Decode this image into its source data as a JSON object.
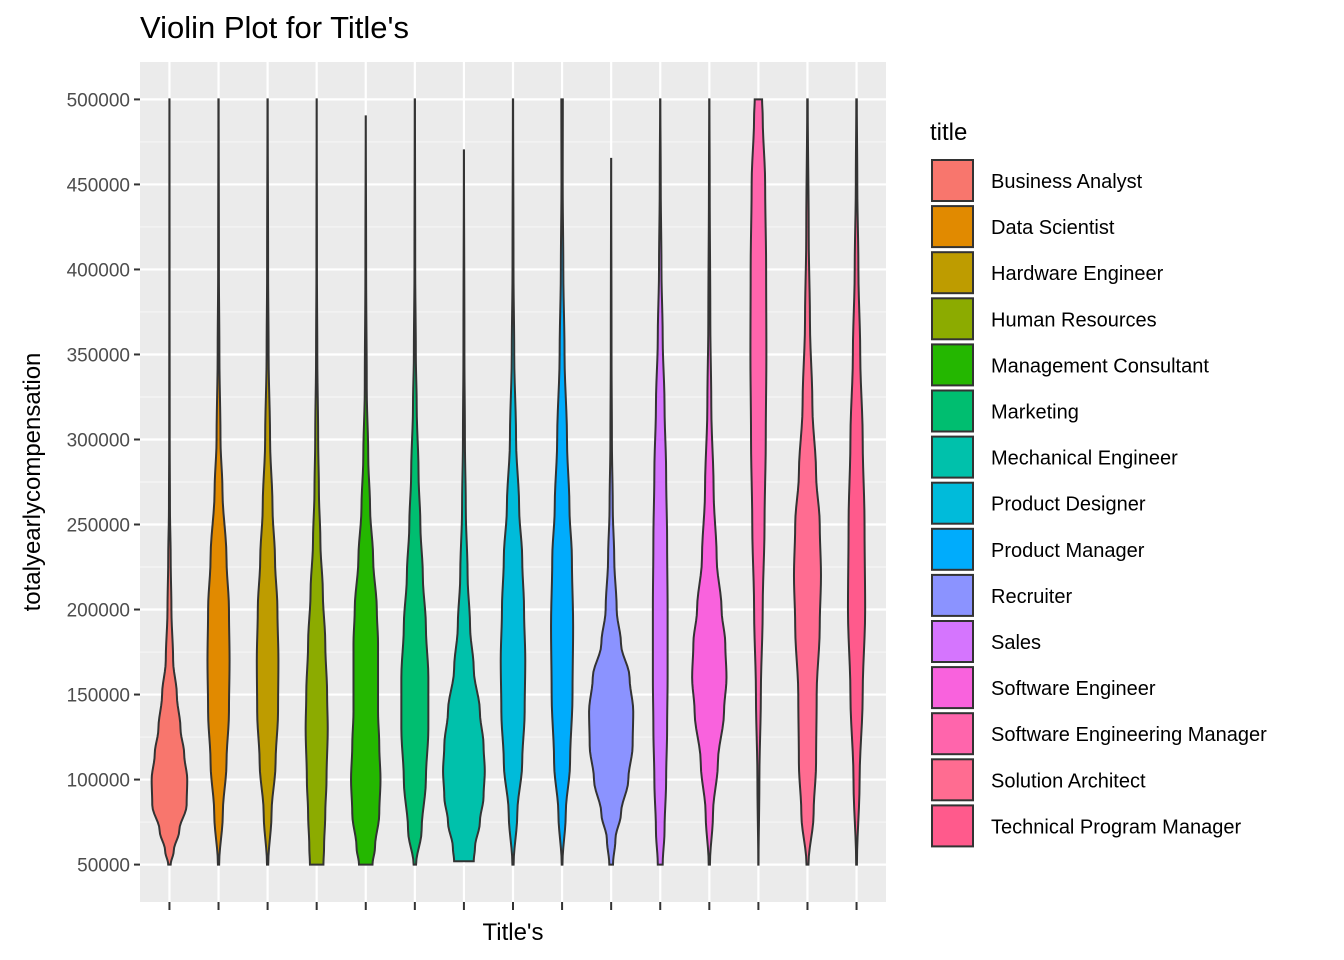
{
  "chart_data": {
    "type": "violin",
    "title": "Violin Plot for Title's",
    "xlabel": "Title's",
    "ylabel": "totalyearlycompensation",
    "ylim": [
      28000,
      522000
    ],
    "yticks": [
      50000,
      100000,
      150000,
      200000,
      250000,
      300000,
      350000,
      400000,
      450000,
      500000
    ],
    "ytick_labels": [
      "50000",
      "100000",
      "150000",
      "200000",
      "250000",
      "300000",
      "350000",
      "400000",
      "450000",
      "500000"
    ],
    "grid": true,
    "legend": {
      "title": "title",
      "position": "right"
    },
    "categories": [
      "Business Analyst",
      "Data Scientist",
      "Hardware Engineer",
      "Human Resources",
      "Management Consultant",
      "Marketing",
      "Mechanical Engineer",
      "Product Designer",
      "Product Manager",
      "Recruiter",
      "Sales",
      "Software Engineer",
      "Software Engineering Manager",
      "Solution Architect",
      "Technical Program Manager"
    ],
    "colors": [
      "#F8766D",
      "#E18A00",
      "#BE9C00",
      "#8CAB00",
      "#24B700",
      "#00BE70",
      "#00C1AB",
      "#00BBDA",
      "#00ACFC",
      "#8B93FF",
      "#D575FE",
      "#F962DD",
      "#FF65AC",
      "#FF6C91",
      "#FF5A8C"
    ],
    "series": [
      {
        "name": "Business Analyst",
        "min": 50000,
        "max": 500000,
        "color": "#F8766D",
        "density": [
          [
            50000,
            1.0
          ],
          [
            58000,
            3.5
          ],
          [
            70000,
            8.0
          ],
          [
            85000,
            14.0
          ],
          [
            100000,
            14.5
          ],
          [
            115000,
            12.0
          ],
          [
            130000,
            9.0
          ],
          [
            150000,
            6.0
          ],
          [
            170000,
            3.0
          ],
          [
            200000,
            1.6
          ],
          [
            230000,
            1.0
          ],
          [
            260000,
            0.4
          ],
          [
            300000,
            0.2
          ],
          [
            400000,
            0.1
          ],
          [
            500000,
            0.05
          ]
        ]
      },
      {
        "name": "Data Scientist",
        "min": 50000,
        "max": 500000,
        "color": "#E18A00",
        "density": [
          [
            50000,
            0.5
          ],
          [
            80000,
            3.5
          ],
          [
            110000,
            6.5
          ],
          [
            140000,
            8.5
          ],
          [
            170000,
            9.0
          ],
          [
            200000,
            8.5
          ],
          [
            230000,
            6.5
          ],
          [
            270000,
            3.2
          ],
          [
            300000,
            1.6
          ],
          [
            350000,
            0.7
          ],
          [
            400000,
            0.3
          ],
          [
            500000,
            0.1
          ]
        ]
      },
      {
        "name": "Hardware Engineer",
        "min": 50000,
        "max": 500000,
        "color": "#BE9C00",
        "density": [
          [
            50000,
            0.5
          ],
          [
            80000,
            3.2
          ],
          [
            110000,
            6.5
          ],
          [
            140000,
            8.5
          ],
          [
            170000,
            8.8
          ],
          [
            200000,
            8.0
          ],
          [
            230000,
            6.0
          ],
          [
            260000,
            4.0
          ],
          [
            300000,
            2.0
          ],
          [
            350000,
            0.8
          ],
          [
            400000,
            0.4
          ],
          [
            500000,
            0.1
          ]
        ]
      },
      {
        "name": "Human Resources",
        "min": 50000,
        "max": 500000,
        "color": "#8CAB00",
        "density": [
          [
            50000,
            5.5
          ],
          [
            60000,
            6.0
          ],
          [
            80000,
            7.0
          ],
          [
            100000,
            8.0
          ],
          [
            130000,
            9.0
          ],
          [
            150000,
            8.5
          ],
          [
            180000,
            7.0
          ],
          [
            210000,
            5.0
          ],
          [
            240000,
            3.0
          ],
          [
            270000,
            1.8
          ],
          [
            300000,
            1.2
          ],
          [
            350000,
            0.5
          ],
          [
            400000,
            0.2
          ],
          [
            500000,
            0.05
          ]
        ]
      },
      {
        "name": "Management Consultant",
        "min": 50000,
        "max": 490000,
        "color": "#24B700",
        "density": [
          [
            50000,
            5.5
          ],
          [
            60000,
            7.5
          ],
          [
            80000,
            11.0
          ],
          [
            100000,
            12.0
          ],
          [
            120000,
            11.0
          ],
          [
            140000,
            10.0
          ],
          [
            160000,
            10.0
          ],
          [
            180000,
            10.0
          ],
          [
            200000,
            9.0
          ],
          [
            230000,
            6.0
          ],
          [
            260000,
            3.5
          ],
          [
            290000,
            2.0
          ],
          [
            330000,
            0.8
          ],
          [
            400000,
            0.3
          ],
          [
            490000,
            0.05
          ]
        ]
      },
      {
        "name": "Marketing",
        "min": 50000,
        "max": 500000,
        "color": "#00BE70",
        "density": [
          [
            50000,
            1.0
          ],
          [
            70000,
            5.5
          ],
          [
            100000,
            9.0
          ],
          [
            130000,
            11.0
          ],
          [
            160000,
            11.0
          ],
          [
            190000,
            9.0
          ],
          [
            220000,
            6.5
          ],
          [
            250000,
            4.5
          ],
          [
            280000,
            3.0
          ],
          [
            320000,
            1.5
          ],
          [
            350000,
            0.8
          ],
          [
            400000,
            0.3
          ],
          [
            500000,
            0.1
          ]
        ]
      },
      {
        "name": "Mechanical Engineer",
        "min": 52000,
        "max": 470000,
        "color": "#00C1AB",
        "density": [
          [
            52000,
            8.0
          ],
          [
            60000,
            9.0
          ],
          [
            75000,
            13.0
          ],
          [
            90000,
            16.0
          ],
          [
            105000,
            17.0
          ],
          [
            120000,
            16.0
          ],
          [
            140000,
            13.0
          ],
          [
            165000,
            8.0
          ],
          [
            190000,
            5.0
          ],
          [
            220000,
            3.0
          ],
          [
            260000,
            1.5
          ],
          [
            300000,
            0.8
          ],
          [
            350000,
            0.4
          ],
          [
            470000,
            0.05
          ]
        ]
      },
      {
        "name": "Product Designer",
        "min": 50000,
        "max": 500000,
        "color": "#00BBDA",
        "density": [
          [
            50000,
            0.5
          ],
          [
            80000,
            3.5
          ],
          [
            110000,
            7.5
          ],
          [
            140000,
            9.5
          ],
          [
            170000,
            10.0
          ],
          [
            200000,
            9.0
          ],
          [
            230000,
            7.5
          ],
          [
            260000,
            5.0
          ],
          [
            300000,
            2.5
          ],
          [
            350000,
            1.0
          ],
          [
            400000,
            0.4
          ],
          [
            500000,
            0.1
          ]
        ]
      },
      {
        "name": "Product Manager",
        "min": 50000,
        "max": 500000,
        "color": "#00ACFC",
        "density": [
          [
            50000,
            0.3
          ],
          [
            80000,
            3.0
          ],
          [
            110000,
            6.5
          ],
          [
            150000,
            8.5
          ],
          [
            190000,
            9.0
          ],
          [
            230000,
            8.0
          ],
          [
            260000,
            6.0
          ],
          [
            300000,
            4.0
          ],
          [
            350000,
            2.0
          ],
          [
            400000,
            1.0
          ],
          [
            450000,
            0.5
          ],
          [
            500000,
            0.6
          ]
        ]
      },
      {
        "name": "Recruiter",
        "min": 50000,
        "max": 465000,
        "color": "#8B93FF",
        "density": [
          [
            50000,
            1.5
          ],
          [
            65000,
            3.5
          ],
          [
            80000,
            8.0
          ],
          [
            100000,
            14.0
          ],
          [
            120000,
            17.5
          ],
          [
            140000,
            18.0
          ],
          [
            160000,
            15.0
          ],
          [
            180000,
            8.0
          ],
          [
            200000,
            4.5
          ],
          [
            230000,
            2.5
          ],
          [
            260000,
            1.3
          ],
          [
            300000,
            0.6
          ],
          [
            350000,
            0.3
          ],
          [
            465000,
            0.05
          ]
        ]
      },
      {
        "name": "Sales",
        "min": 50000,
        "max": 500000,
        "color": "#D575FE",
        "density": [
          [
            50000,
            2.0
          ],
          [
            70000,
            3.5
          ],
          [
            100000,
            4.8
          ],
          [
            130000,
            5.6
          ],
          [
            160000,
            6.0
          ],
          [
            200000,
            6.0
          ],
          [
            240000,
            5.6
          ],
          [
            280000,
            4.8
          ],
          [
            320000,
            3.5
          ],
          [
            360000,
            2.0
          ],
          [
            400000,
            1.0
          ],
          [
            450000,
            0.4
          ],
          [
            500000,
            0.1
          ]
        ]
      },
      {
        "name": "Software Engineer",
        "min": 50000,
        "max": 500000,
        "color": "#F962DD",
        "density": [
          [
            50000,
            0.5
          ],
          [
            80000,
            3.0
          ],
          [
            110000,
            7.0
          ],
          [
            140000,
            12.0
          ],
          [
            160000,
            14.0
          ],
          [
            180000,
            13.0
          ],
          [
            200000,
            10.0
          ],
          [
            230000,
            6.0
          ],
          [
            270000,
            3.5
          ],
          [
            320000,
            1.6
          ],
          [
            370000,
            0.8
          ],
          [
            450000,
            0.3
          ],
          [
            500000,
            0.1
          ]
        ]
      },
      {
        "name": "Software Engineering Manager",
        "min": 50000,
        "max": 500000,
        "color": "#FF65AC",
        "density": [
          [
            50000,
            0.1
          ],
          [
            100000,
            0.8
          ],
          [
            150000,
            2.0
          ],
          [
            200000,
            3.5
          ],
          [
            250000,
            5.0
          ],
          [
            300000,
            6.0
          ],
          [
            350000,
            6.5
          ],
          [
            400000,
            6.3
          ],
          [
            450000,
            5.5
          ],
          [
            490000,
            3.5
          ],
          [
            500000,
            3.0
          ]
        ]
      },
      {
        "name": "Solution Architect",
        "min": 50000,
        "max": 500000,
        "color": "#FF6C91",
        "density": [
          [
            50000,
            0.8
          ],
          [
            80000,
            5.0
          ],
          [
            110000,
            7.0
          ],
          [
            150000,
            7.5
          ],
          [
            190000,
            10.0
          ],
          [
            220000,
            11.0
          ],
          [
            250000,
            10.0
          ],
          [
            280000,
            7.0
          ],
          [
            320000,
            4.0
          ],
          [
            370000,
            2.0
          ],
          [
            420000,
            1.0
          ],
          [
            500000,
            0.2
          ]
        ]
      },
      {
        "name": "Technical Program Manager",
        "min": 50000,
        "max": 500000,
        "color": "#FF5A8C",
        "density": [
          [
            50000,
            0.3
          ],
          [
            100000,
            2.5
          ],
          [
            150000,
            5.0
          ],
          [
            200000,
            7.0
          ],
          [
            250000,
            6.5
          ],
          [
            300000,
            5.0
          ],
          [
            350000,
            3.0
          ],
          [
            400000,
            1.5
          ],
          [
            450000,
            0.6
          ],
          [
            500000,
            0.2
          ]
        ]
      }
    ]
  }
}
